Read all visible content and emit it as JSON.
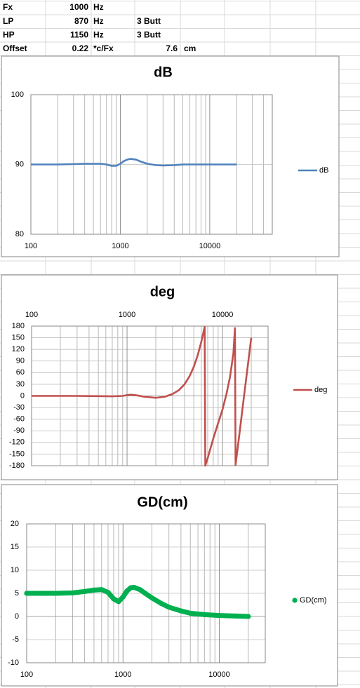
{
  "sheet": {
    "rows": [
      [
        "Fx",
        1000,
        "Hz"
      ],
      [
        "LP",
        870,
        "Hz",
        "3 Butt"
      ],
      [
        "HP",
        1150,
        "Hz",
        "3 Butt"
      ],
      [
        "Offset",
        0.22,
        "*c/Fx",
        7.6,
        "cm"
      ]
    ]
  },
  "chart_data": [
    {
      "type": "line",
      "title": "dB",
      "log_x": true,
      "xaxis_side": "bottom",
      "legend": "right",
      "x": [
        100,
        150,
        200,
        300,
        400,
        500,
        600,
        700,
        800,
        900,
        1000,
        1100,
        1200,
        1300,
        1500,
        1700,
        2000,
        2500,
        3000,
        4000,
        5000,
        7000,
        10000,
        15000,
        20000
      ],
      "series": [
        {
          "name": "dB",
          "color": "#4f81bd",
          "values": [
            90,
            90,
            90,
            90.05,
            90.1,
            90.1,
            90.1,
            90,
            89.8,
            89.8,
            90.1,
            90.5,
            90.7,
            90.8,
            90.7,
            90.4,
            90.1,
            89.9,
            89.85,
            89.9,
            90,
            90,
            90,
            90,
            90
          ]
        }
      ],
      "xlim": [
        100,
        50000
      ],
      "xticks": [
        100,
        1000,
        10000
      ],
      "ylim": [
        80,
        100
      ],
      "yticks": [
        80,
        90,
        100
      ]
    },
    {
      "type": "line",
      "title": "deg",
      "log_x": true,
      "xaxis_side": "top",
      "legend": "right",
      "x": [
        100,
        200,
        300,
        500,
        700,
        900,
        1000,
        1100,
        1300,
        1500,
        2000,
        2500,
        3000,
        3500,
        4000,
        4500,
        5000,
        5500,
        6000,
        6500,
        6600,
        7000,
        8000,
        9000,
        10000,
        11000,
        12000,
        13000,
        13500,
        13700,
        15000,
        17000,
        20000
      ],
      "series": [
        {
          "name": "deg",
          "color": "#c0504d",
          "values": [
            0,
            0,
            0,
            -0.5,
            -1,
            0,
            2,
            3,
            1,
            -2,
            -5,
            -2,
            5,
            15,
            30,
            50,
            75,
            105,
            140,
            178,
            -180,
            -160,
            -110,
            -70,
            -35,
            5,
            50,
            110,
            175,
            -178,
            -100,
            10,
            150
          ]
        }
      ],
      "xlim": [
        100,
        30000
      ],
      "xticks": [
        100,
        1000,
        10000
      ],
      "ylim": [
        -180,
        180
      ],
      "yticks": [
        -180,
        -150,
        -120,
        -90,
        -60,
        -30,
        0,
        30,
        60,
        90,
        120,
        150,
        180
      ]
    },
    {
      "type": "scatter",
      "title": "GD(cm)",
      "log_x": true,
      "xaxis_side": "bottom",
      "legend": "right",
      "x": [
        100,
        150,
        200,
        300,
        400,
        500,
        600,
        700,
        800,
        900,
        1000,
        1100,
        1200,
        1300,
        1500,
        1700,
        2000,
        2500,
        3000,
        4000,
        5000,
        7000,
        10000,
        15000,
        20000
      ],
      "series": [
        {
          "name": "GD(cm)",
          "color": "#00b050",
          "values": [
            5,
            5,
            5,
            5.1,
            5.4,
            5.7,
            5.8,
            5.2,
            3.8,
            3.2,
            4.2,
            5.5,
            6.2,
            6.3,
            5.8,
            5,
            4,
            2.8,
            2,
            1.2,
            0.7,
            0.4,
            0.2,
            0.1,
            0
          ]
        }
      ],
      "xlim": [
        100,
        30000
      ],
      "xticks": [
        100,
        1000,
        10000
      ],
      "ylim": [
        -10,
        20
      ],
      "yticks": [
        -10,
        -5,
        0,
        5,
        10,
        15,
        20
      ]
    }
  ]
}
